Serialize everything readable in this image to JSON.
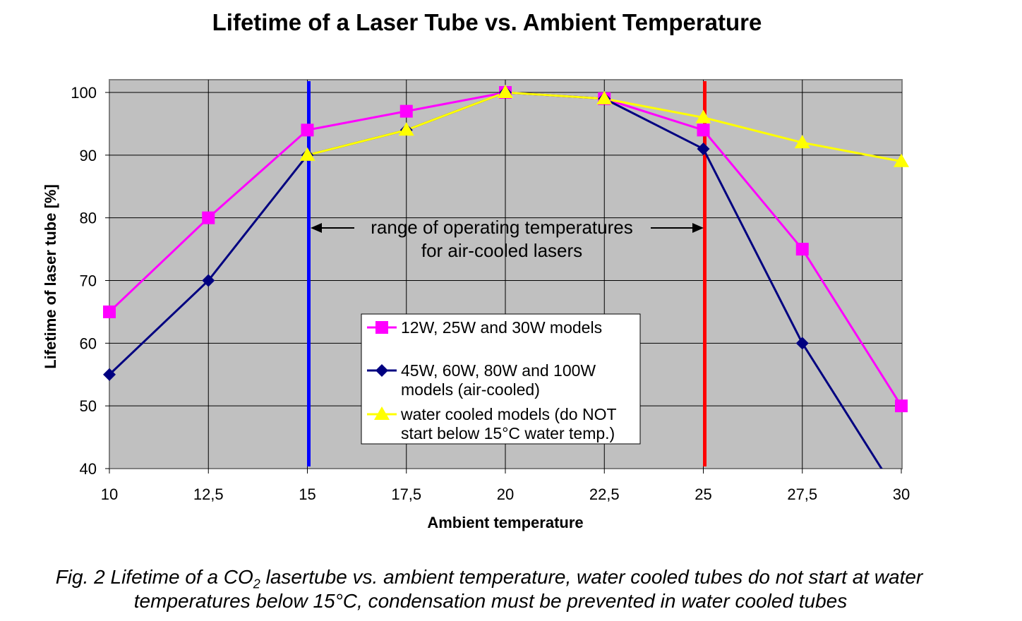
{
  "chart_data": {
    "type": "line",
    "title": "Lifetime of a Laser Tube vs. Ambient Temperature",
    "xlabel": "Ambient temperature",
    "ylabel": "Lifetime of laser tube [%]",
    "x": [
      10,
      12.5,
      15,
      17.5,
      20,
      22.5,
      25,
      27.5,
      30
    ],
    "x_tick_labels": [
      "10",
      "12,5",
      "15",
      "17,5",
      "20",
      "22,5",
      "25",
      "27,5",
      "30"
    ],
    "y_ticks": [
      40,
      50,
      60,
      70,
      80,
      90,
      100
    ],
    "xlim": [
      10,
      30
    ],
    "ylim": [
      40,
      100
    ],
    "grid": true,
    "series": [
      {
        "name": "12W, 25W and 30W models",
        "color": "#ff00ff",
        "marker": "square",
        "values": [
          65,
          80,
          94,
          97,
          100,
          99,
          94,
          75,
          50
        ]
      },
      {
        "name": "45W, 60W, 80W and 100W models (air-cooled)",
        "legend_lines": [
          "45W, 60W, 80W and 100W",
          "models (air-cooled)"
        ],
        "color": "#000080",
        "marker": "diamond",
        "values": [
          55,
          70,
          90,
          94,
          100,
          99,
          91,
          60,
          35
        ]
      },
      {
        "name": "water cooled models (do NOT start below 15°C water temp.)",
        "legend_lines": [
          "water cooled models (do NOT",
          "start below 15°C water temp.)"
        ],
        "color": "#ffff00",
        "marker": "triangle",
        "values": [
          null,
          null,
          90,
          94,
          100,
          99,
          96,
          92,
          89
        ]
      }
    ],
    "vertical_lines": [
      {
        "x": 15,
        "color": "#0000ff"
      },
      {
        "x": 25,
        "color": "#ff0000"
      }
    ],
    "annotation": {
      "lines": [
        "range of operating temperatures",
        "for air-cooled lasers"
      ],
      "from": 15,
      "to": 25
    },
    "legend_position": "center-bottom"
  },
  "caption": {
    "part1": "Fig. 2 Lifetime of a CO",
    "sub": "2",
    "part2": " lasertube vs. ambient temperature, water cooled tubes do not start at water",
    "line2": "temperatures below 15°C, condensation must be prevented in water cooled tubes"
  }
}
